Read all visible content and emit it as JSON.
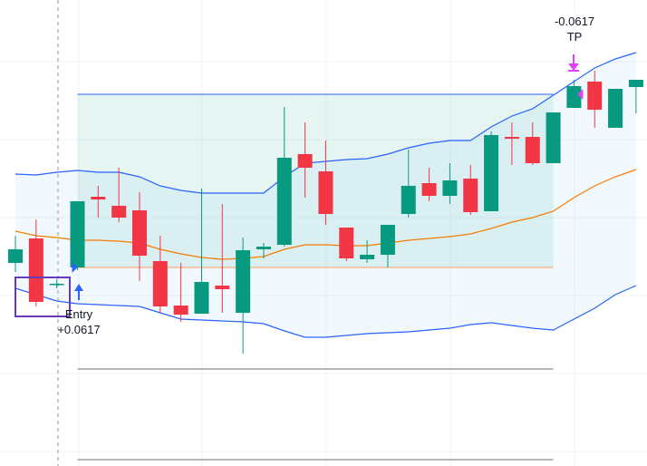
{
  "chart_data": {
    "type": "candlestick",
    "ylim": [
      0,
      514
    ],
    "up_color": "#089981",
    "down_color": "#f23645",
    "open": [
      224,
      251,
      201,
      219,
      297,
      287,
      282,
      226,
      177,
      168,
      199,
      169,
      239,
      244,
      344,
      325,
      263,
      228,
      233,
      278,
      312,
      298,
      317,
      281,
      363,
      363,
      334,
      395,
      424,
      373,
      418
    ],
    "high": [
      254,
      272,
      206,
      292,
      309,
      329,
      302,
      254,
      224,
      306,
      289,
      252,
      246,
      396,
      379,
      359,
      263,
      249,
      266,
      349,
      329,
      334,
      332,
      369,
      379,
      379,
      390,
      426,
      436,
      416,
      426
    ],
    "low": [
      214,
      176,
      196,
      216,
      274,
      269,
      204,
      169,
      159,
      168,
      169,
      124,
      229,
      242,
      296,
      266,
      226,
      224,
      219,
      274,
      292,
      289,
      277,
      281,
      332,
      332,
      334,
      395,
      373,
      373,
      389
    ],
    "close": [
      239,
      181,
      201,
      292,
      294,
      274,
      232,
      176,
      167,
      203,
      195,
      238,
      242,
      340,
      329,
      278,
      229,
      233,
      266,
      309,
      298,
      315,
      280,
      365,
      361,
      334,
      390,
      419,
      393,
      416,
      426
    ],
    "bands": [
      {
        "name": "upper",
        "color": "#2962ff",
        "values": [
          322,
          321,
          324,
          326,
          324,
          324,
          319,
          309,
          304,
          301,
          301,
          301,
          301,
          319,
          334,
          336,
          338,
          339,
          344,
          351,
          356,
          359,
          359,
          374,
          386,
          394,
          409,
          424,
          439,
          449,
          456
        ]
      },
      {
        "name": "basis",
        "color": "#f57c00",
        "values": [
          259,
          254,
          252,
          249,
          249,
          248,
          246,
          239,
          234,
          230,
          228,
          229,
          231,
          239,
          244,
          244,
          243,
          243,
          246,
          249,
          251,
          253,
          256,
          262,
          269,
          274,
          281,
          296,
          309,
          319,
          327
        ]
      },
      {
        "name": "lower",
        "color": "#2962ff",
        "values": [
          196,
          189,
          182,
          179,
          178,
          177,
          176,
          169,
          162,
          161,
          160,
          159,
          157,
          149,
          142,
          142,
          144,
          146,
          147,
          148,
          150,
          152,
          156,
          158,
          155,
          152,
          150,
          162,
          174,
          189,
          199
        ]
      }
    ],
    "levels": {
      "take_profit": 410,
      "entry": 219,
      "stop_1": 107,
      "stop_2": 7
    },
    "annotations": {
      "entry_label": "Entry",
      "entry_value": "+0.0617",
      "tp_value": "-0.0617",
      "tp_label": "TP"
    }
  }
}
